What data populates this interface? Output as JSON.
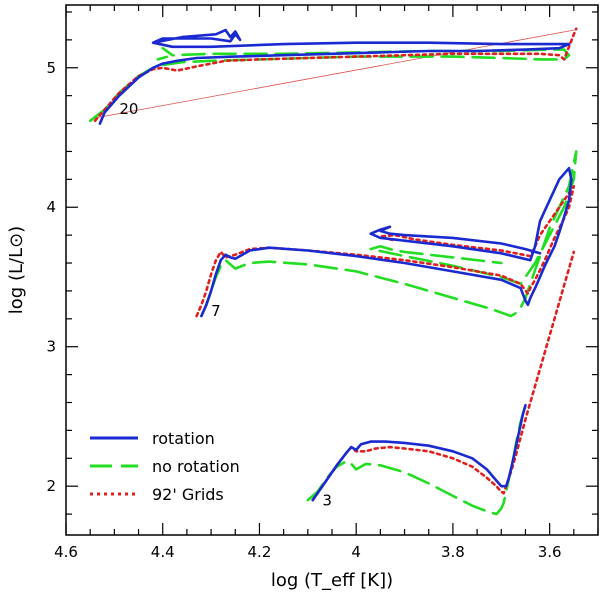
{
  "chart_data": {
    "type": "line",
    "title": "",
    "xlabel": "log (T_eff [K])",
    "ylabel": "log (L/L⊙)",
    "xlim": [
      4.6,
      3.5
    ],
    "ylim": [
      1.65,
      5.45
    ],
    "x_ticks": [
      "4.6",
      "4.4",
      "4.2",
      "4",
      "3.8",
      "3.6"
    ],
    "y_ticks": [
      "2",
      "3",
      "4",
      "5"
    ],
    "x_tick_values": [
      4.6,
      4.4,
      4.2,
      4.0,
      3.8,
      3.6
    ],
    "y_tick_values": [
      2,
      3,
      4,
      5
    ],
    "colors": {
      "rotation": "#1a2ad0",
      "no_rotation": "#22dd22",
      "grids": "#e02020",
      "diagonal": "#e05050"
    },
    "legend": [
      {
        "key": "rotation",
        "label": "rotation",
        "style": "solid"
      },
      {
        "key": "no_rotation",
        "label": "no rotation",
        "style": "long-dash"
      },
      {
        "key": "grids",
        "label": "92' Grids",
        "style": "dotted"
      }
    ],
    "mass_labels": [
      {
        "text": "20",
        "x": 4.47,
        "y": 4.67
      },
      {
        "text": "7",
        "x": 4.29,
        "y": 3.22
      },
      {
        "text": "3",
        "x": 4.06,
        "y": 1.86
      }
    ],
    "diagonal_line": {
      "x": [
        4.54,
        3.55
      ],
      "y": [
        4.64,
        5.27
      ]
    },
    "series": [
      {
        "name": "rotation 20",
        "key": "rotation",
        "x": [
          4.53,
          4.52,
          4.49,
          4.45,
          4.42,
          4.4,
          4.37,
          4.33,
          4.25,
          4.15,
          4.05,
          3.95,
          3.85,
          3.75,
          3.65,
          3.58,
          3.56,
          3.6,
          3.7,
          3.85,
          4.0,
          4.15,
          4.3,
          4.38,
          4.42,
          4.36,
          4.29,
          4.27,
          4.26,
          4.25,
          4.24,
          4.25,
          4.26,
          4.3,
          4.4,
          4.42
        ],
        "y": [
          4.6,
          4.68,
          4.8,
          4.93,
          5.0,
          5.03,
          5.05,
          5.07,
          5.08,
          5.09,
          5.1,
          5.11,
          5.12,
          5.12,
          5.13,
          5.14,
          5.17,
          5.17,
          5.17,
          5.18,
          5.18,
          5.17,
          5.15,
          5.15,
          5.18,
          5.22,
          5.24,
          5.27,
          5.22,
          5.26,
          5.2,
          5.24,
          5.19,
          5.21,
          5.21,
          5.18
        ]
      },
      {
        "name": "no rotation 20",
        "key": "no_rotation",
        "x": [
          4.55,
          4.52,
          4.49,
          4.45,
          4.42,
          4.4,
          4.36,
          4.3,
          4.2,
          4.1,
          4.0,
          3.9,
          3.8,
          3.7,
          3.62,
          3.57,
          3.56,
          3.57,
          3.6,
          3.7,
          3.85,
          4.0,
          4.15,
          4.3,
          4.38,
          4.4,
          4.38,
          4.41
        ],
        "y": [
          4.62,
          4.7,
          4.82,
          4.94,
          5.0,
          5.02,
          5.04,
          5.05,
          5.06,
          5.07,
          5.08,
          5.08,
          5.08,
          5.07,
          5.06,
          5.06,
          5.09,
          5.13,
          5.13,
          5.12,
          5.12,
          5.11,
          5.1,
          5.1,
          5.09,
          5.14,
          5.09,
          5.06
        ]
      },
      {
        "name": "92 grids 20",
        "key": "grids",
        "x": [
          4.54,
          4.52,
          4.49,
          4.45,
          4.42,
          4.4,
          4.37,
          4.33,
          4.27,
          4.2,
          4.1,
          4.0,
          3.9,
          3.8,
          3.7,
          3.62,
          3.58,
          3.57,
          3.56,
          3.55,
          3.545
        ],
        "y": [
          4.62,
          4.7,
          4.82,
          4.94,
          4.99,
          5.0,
          4.98,
          5.01,
          5.05,
          5.06,
          5.07,
          5.08,
          5.09,
          5.1,
          5.1,
          5.1,
          5.09,
          5.06,
          5.15,
          5.24,
          5.28
        ]
      },
      {
        "name": "rotation 7",
        "key": "rotation",
        "x": [
          4.32,
          4.31,
          4.3,
          4.29,
          4.28,
          4.27,
          4.26,
          4.25,
          4.22,
          4.18,
          4.1,
          4.0,
          3.9,
          3.8,
          3.7,
          3.66,
          3.65,
          3.645,
          3.64,
          3.63,
          3.62,
          3.61,
          3.6,
          3.59,
          3.58,
          3.57,
          3.56,
          3.555,
          3.56,
          3.58,
          3.6,
          3.62,
          3.63,
          3.64,
          3.7,
          3.8,
          3.9,
          3.95,
          3.97,
          3.95,
          3.93,
          3.95,
          3.93,
          3.9,
          3.8,
          3.7,
          3.65,
          3.62
        ],
        "y": [
          3.22,
          3.3,
          3.4,
          3.52,
          3.62,
          3.66,
          3.64,
          3.63,
          3.69,
          3.71,
          3.69,
          3.65,
          3.6,
          3.54,
          3.48,
          3.42,
          3.33,
          3.3,
          3.35,
          3.42,
          3.5,
          3.58,
          3.65,
          3.72,
          3.82,
          3.93,
          4.05,
          4.2,
          4.28,
          4.2,
          4.05,
          3.9,
          3.72,
          3.62,
          3.67,
          3.72,
          3.76,
          3.78,
          3.81,
          3.84,
          3.86,
          3.83,
          3.81,
          3.8,
          3.78,
          3.74,
          3.7,
          3.67
        ]
      },
      {
        "name": "no rotation 7",
        "key": "no_rotation",
        "x": [
          4.32,
          4.31,
          4.3,
          4.29,
          4.28,
          4.27,
          4.25,
          4.22,
          4.18,
          4.1,
          4.0,
          3.9,
          3.8,
          3.72,
          3.68,
          3.67,
          3.66,
          3.65,
          3.64,
          3.63,
          3.62,
          3.61,
          3.6,
          3.58,
          3.56,
          3.545,
          3.55,
          3.57,
          3.6,
          3.63,
          3.65,
          3.66,
          3.7,
          3.8,
          3.9,
          3.97,
          3.95,
          3.92,
          3.9,
          3.85,
          3.8,
          3.7
        ],
        "y": [
          3.22,
          3.3,
          3.4,
          3.5,
          3.58,
          3.62,
          3.56,
          3.6,
          3.61,
          3.59,
          3.54,
          3.45,
          3.35,
          3.27,
          3.22,
          3.24,
          3.28,
          3.35,
          3.45,
          3.55,
          3.65,
          3.75,
          3.85,
          4.0,
          4.15,
          4.4,
          4.2,
          4.0,
          3.8,
          3.6,
          3.5,
          3.45,
          3.5,
          3.58,
          3.65,
          3.7,
          3.72,
          3.69,
          3.68,
          3.66,
          3.64,
          3.6
        ]
      },
      {
        "name": "92 grids 7",
        "key": "grids",
        "x": [
          4.33,
          4.32,
          4.31,
          4.3,
          4.29,
          4.28,
          4.27,
          4.25,
          4.22,
          4.18,
          4.1,
          4.0,
          3.9,
          3.8,
          3.7,
          3.66,
          3.645,
          3.64,
          3.63,
          3.62,
          3.61,
          3.6,
          3.59,
          3.58,
          3.57,
          3.56,
          3.55,
          3.56,
          3.58,
          3.6,
          3.62,
          3.63,
          3.64,
          3.7,
          3.8,
          3.88,
          3.92,
          3.95,
          3.92
        ],
        "y": [
          3.22,
          3.3,
          3.4,
          3.52,
          3.62,
          3.68,
          3.64,
          3.66,
          3.7,
          3.71,
          3.69,
          3.66,
          3.62,
          3.57,
          3.51,
          3.45,
          3.38,
          3.42,
          3.48,
          3.55,
          3.62,
          3.7,
          3.78,
          3.85,
          3.92,
          4.0,
          4.15,
          4.1,
          4.0,
          3.9,
          3.8,
          3.72,
          3.65,
          3.69,
          3.73,
          3.77,
          3.8,
          3.79,
          3.76
        ]
      },
      {
        "name": "rotation 3",
        "key": "rotation",
        "x": [
          4.09,
          4.08,
          4.06,
          4.04,
          4.02,
          4.01,
          4.0,
          3.99,
          3.97,
          3.94,
          3.9,
          3.85,
          3.8,
          3.76,
          3.73,
          3.71,
          3.7,
          3.69,
          3.685,
          3.68,
          3.675,
          3.67,
          3.665,
          3.66,
          3.655,
          3.65
        ],
        "y": [
          1.9,
          1.95,
          2.05,
          2.15,
          2.24,
          2.28,
          2.26,
          2.3,
          2.32,
          2.32,
          2.31,
          2.29,
          2.25,
          2.2,
          2.12,
          2.04,
          2.0,
          2.0,
          2.05,
          2.12,
          2.2,
          2.28,
          2.36,
          2.44,
          2.52,
          2.58
        ]
      },
      {
        "name": "no rotation 3",
        "key": "no_rotation",
        "x": [
          4.1,
          4.08,
          4.06,
          4.04,
          4.02,
          4.01,
          4.0,
          3.98,
          3.95,
          3.9,
          3.85,
          3.8,
          3.76,
          3.73,
          3.71,
          3.7,
          3.695,
          3.69,
          3.685,
          3.68,
          3.675,
          3.67,
          3.665,
          3.66,
          3.655,
          3.65
        ],
        "y": [
          1.9,
          1.96,
          2.06,
          2.14,
          2.18,
          2.16,
          2.12,
          2.16,
          2.15,
          2.1,
          2.02,
          1.93,
          1.86,
          1.82,
          1.8,
          1.84,
          1.88,
          1.96,
          2.04,
          2.12,
          2.2,
          2.3,
          2.38,
          2.46,
          2.52,
          2.58
        ]
      },
      {
        "name": "92 grids 3",
        "key": "grids",
        "x": [
          4.09,
          4.08,
          4.06,
          4.04,
          4.02,
          4.01,
          4.0,
          3.98,
          3.96,
          3.93,
          3.9,
          3.85,
          3.8,
          3.76,
          3.73,
          3.71,
          3.7,
          3.695,
          3.69,
          3.68,
          3.67,
          3.66,
          3.65,
          3.64,
          3.63,
          3.62,
          3.61,
          3.6,
          3.59,
          3.58,
          3.57,
          3.56,
          3.55
        ],
        "y": [
          1.9,
          1.95,
          2.05,
          2.15,
          2.24,
          2.28,
          2.25,
          2.25,
          2.27,
          2.28,
          2.27,
          2.25,
          2.2,
          2.14,
          2.06,
          2.0,
          1.96,
          1.95,
          2.0,
          2.1,
          2.22,
          2.35,
          2.48,
          2.6,
          2.72,
          2.84,
          2.96,
          3.08,
          3.2,
          3.32,
          3.44,
          3.56,
          3.68
        ]
      }
    ]
  }
}
